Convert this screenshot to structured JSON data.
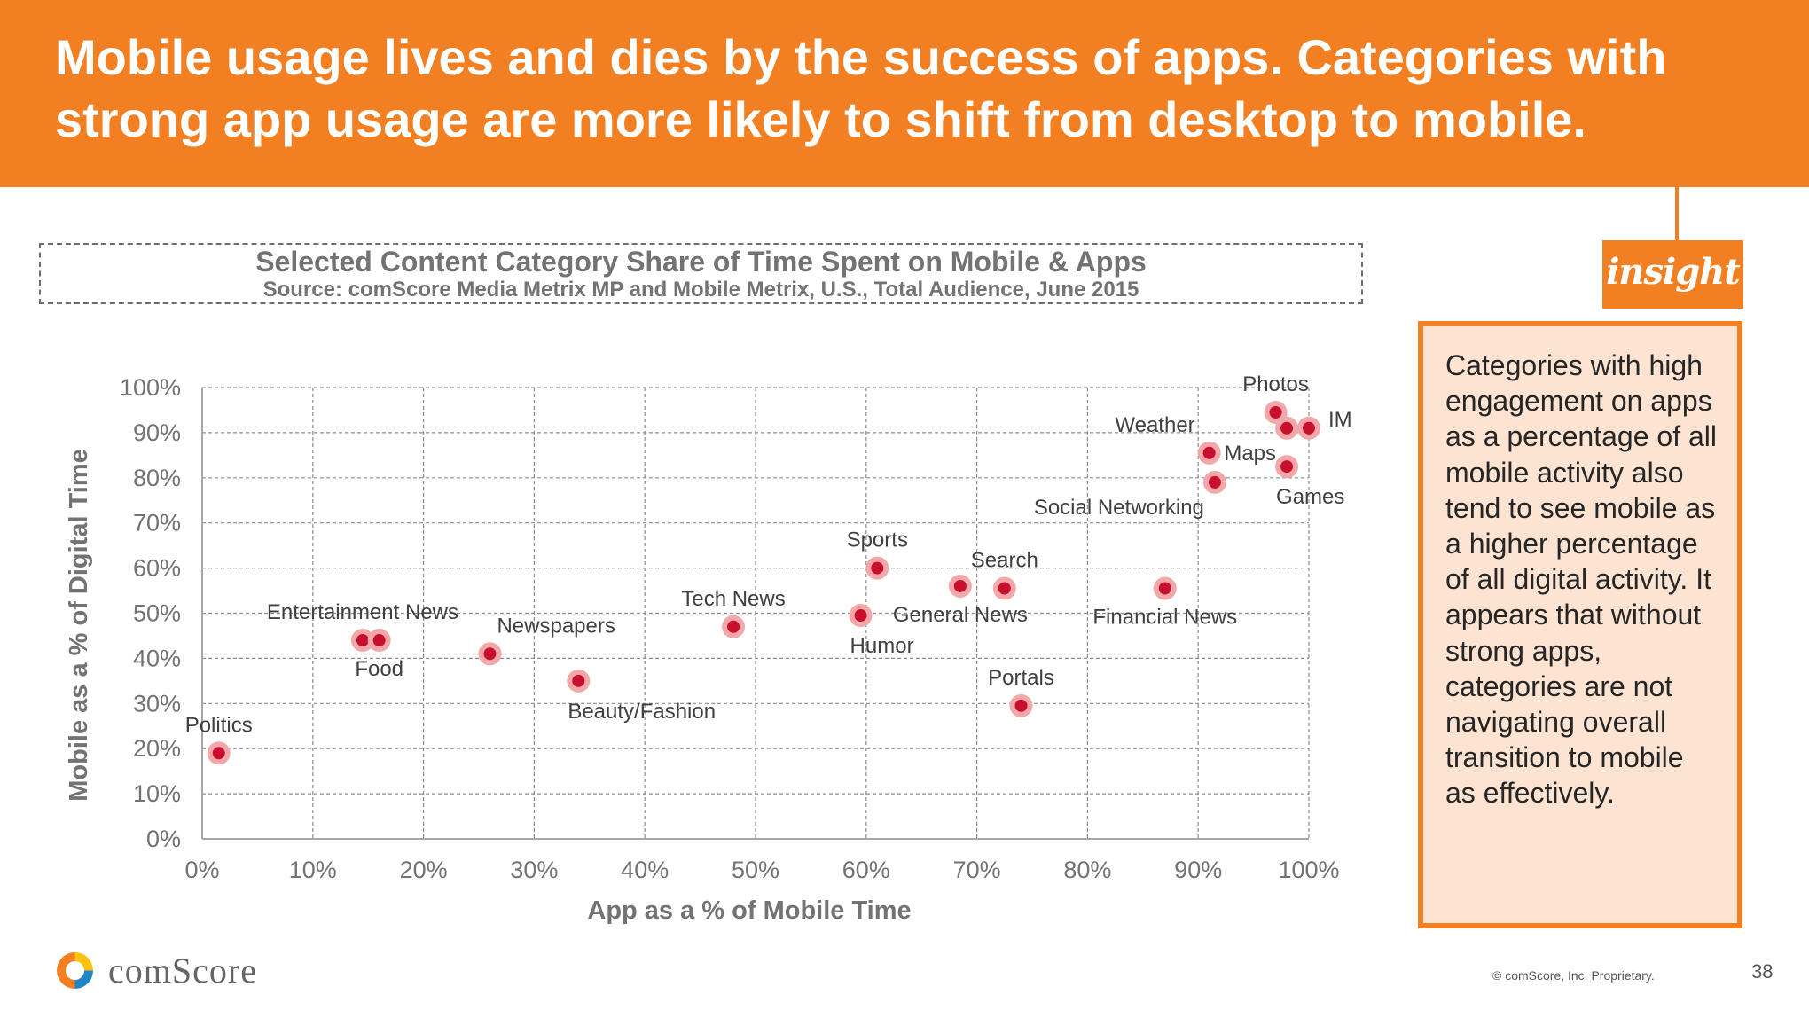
{
  "header": {
    "headline": "Mobile usage lives and dies by the success of apps. Categories with strong app usage are more likely to shift from desktop to mobile."
  },
  "colors": {
    "brand_orange": "#F28023",
    "point_outer": "#F4A7A9",
    "point_inner": "#C8102E",
    "insight_bg": "#FDE3D1",
    "axis_text": "#737373"
  },
  "chart_data": {
    "type": "scatter",
    "title": "Selected Content Category Share of Time Spent on Mobile & Apps",
    "subtitle": "Source: comScore Media Metrix MP and Mobile Metrix, U.S., Total Audience, June 2015",
    "xlabel": "App as a % of Mobile Time",
    "ylabel": "Mobile as a % of Digital Time",
    "xlim": [
      0,
      100
    ],
    "ylim": [
      0,
      100
    ],
    "x_ticks": [
      "0%",
      "10%",
      "20%",
      "30%",
      "40%",
      "50%",
      "60%",
      "70%",
      "80%",
      "90%",
      "100%"
    ],
    "y_ticks": [
      "0%",
      "10%",
      "20%",
      "30%",
      "40%",
      "50%",
      "60%",
      "70%",
      "80%",
      "90%",
      "100%"
    ],
    "grid": true,
    "legend": "none",
    "points": [
      {
        "label": "Politics",
        "x": 1.5,
        "y": 19,
        "label_pos": "above"
      },
      {
        "label": "Entertainment News",
        "x": 14.5,
        "y": 44,
        "label_pos": "above"
      },
      {
        "label": "Food",
        "x": 16,
        "y": 44,
        "label_pos": "below"
      },
      {
        "label": "Newspapers",
        "x": 26,
        "y": 41,
        "label_pos": "above-right"
      },
      {
        "label": "Beauty/Fashion",
        "x": 34,
        "y": 35,
        "label_pos": "below-right"
      },
      {
        "label": "Tech News",
        "x": 48,
        "y": 47,
        "label_pos": "above"
      },
      {
        "label": "Humor",
        "x": 59.5,
        "y": 49.5,
        "label_pos": "below-right"
      },
      {
        "label": "Sports",
        "x": 61,
        "y": 60,
        "label_pos": "above"
      },
      {
        "label": "General News",
        "x": 68.5,
        "y": 56,
        "label_pos": "below"
      },
      {
        "label": "Search",
        "x": 72.5,
        "y": 55.5,
        "label_pos": "above"
      },
      {
        "label": "Portals",
        "x": 74,
        "y": 29.5,
        "label_pos": "above"
      },
      {
        "label": "Financial News",
        "x": 87,
        "y": 55.5,
        "label_pos": "below"
      },
      {
        "label": "Weather",
        "x": 91,
        "y": 85.5,
        "label_pos": "above-left"
      },
      {
        "label": "Social Networking",
        "x": 91.5,
        "y": 79,
        "label_pos": "below-left"
      },
      {
        "label": "Photos",
        "x": 97,
        "y": 94.5,
        "label_pos": "above"
      },
      {
        "label": "Maps",
        "x": 98,
        "y": 91,
        "label_pos": "below-left"
      },
      {
        "label": "IM",
        "x": 100,
        "y": 91,
        "label_pos": "right"
      },
      {
        "label": "Games",
        "x": 98,
        "y": 82.5,
        "label_pos": "below-right"
      }
    ]
  },
  "insight": {
    "tag": "insight",
    "text": "Categories with high engagement on apps as a percentage of all mobile activity also tend to see mobile as a higher percentage of all digital activity. It appears that without strong apps, categories are not navigating overall transition to mobile as effectively."
  },
  "footer": {
    "logo_text": "comScore",
    "copyright": "© comScore, Inc. Proprietary.",
    "page_number": "38"
  }
}
